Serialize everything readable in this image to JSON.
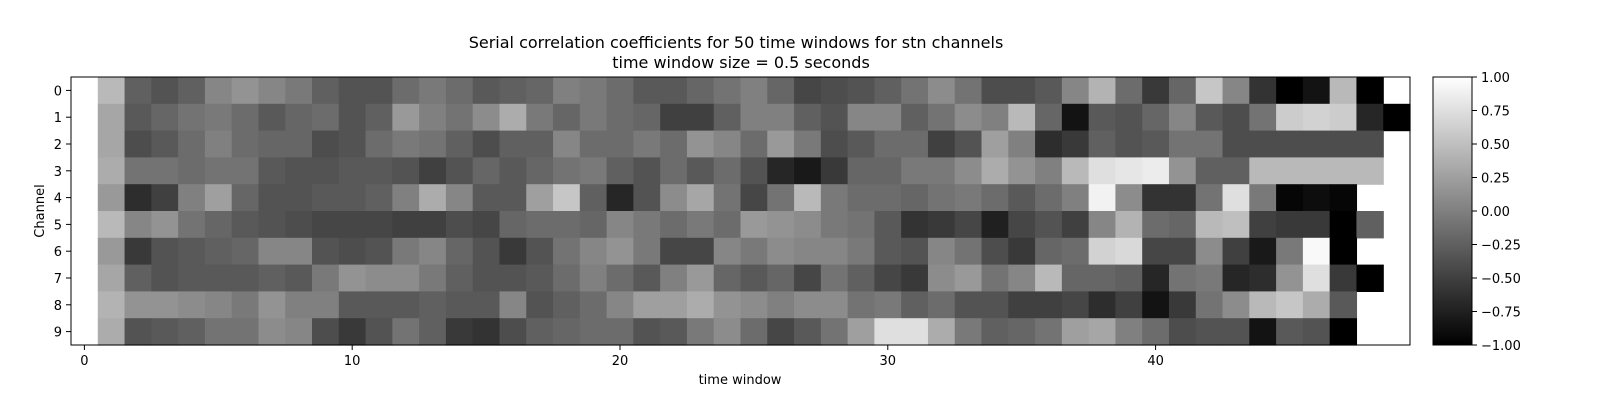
{
  "chart_data": {
    "type": "heatmap",
    "title": "Serial correlation coefficients for 50 time windows for stn channels",
    "subtitle": "time window size = 0.5 seconds",
    "xlabel": "time window",
    "ylabel": "Channel",
    "x_ticks": [
      0,
      10,
      20,
      30,
      40
    ],
    "y_ticks": [
      0,
      1,
      2,
      3,
      4,
      5,
      6,
      7,
      8,
      9
    ],
    "xlim": [
      -0.5,
      49.5
    ],
    "colormap": "gray",
    "colorbar": {
      "range": [
        -1,
        1
      ],
      "ticks": [
        1.0,
        0.75,
        0.5,
        0.25,
        0.0,
        -0.25,
        -0.5,
        -0.75,
        -1.0
      ],
      "tick_labels": [
        "1.00",
        "0.75",
        "0.50",
        "0.25",
        "0.00",
        "−0.25",
        "−0.50",
        "−0.75",
        "−1.00"
      ]
    },
    "rows": [
      [
        null,
        0.45,
        -0.25,
        -0.35,
        -0.25,
        0.05,
        0.15,
        0.05,
        -0.05,
        -0.25,
        -0.35,
        -0.35,
        -0.15,
        -0.05,
        -0.15,
        -0.3,
        -0.25,
        -0.2,
        0.0,
        -0.05,
        -0.15,
        -0.3,
        -0.3,
        -0.2,
        -0.1,
        0.0,
        -0.2,
        -0.45,
        -0.4,
        -0.35,
        -0.25,
        -0.1,
        0.1,
        -0.1,
        -0.4,
        -0.4,
        -0.3,
        0.05,
        0.4,
        -0.15,
        -0.55,
        -0.2,
        0.55,
        0.05,
        -0.6,
        -1.0,
        -0.85,
        0.45,
        -1.0,
        null
      ],
      [
        null,
        0.3,
        -0.3,
        -0.2,
        -0.1,
        -0.05,
        -0.15,
        -0.3,
        -0.2,
        -0.15,
        -0.35,
        -0.25,
        0.2,
        0.0,
        -0.1,
        0.1,
        0.35,
        -0.05,
        -0.2,
        -0.05,
        -0.15,
        -0.2,
        -0.5,
        -0.5,
        -0.25,
        0.0,
        0.0,
        -0.25,
        -0.35,
        0.05,
        0.05,
        -0.25,
        -0.1,
        0.1,
        0.0,
        0.45,
        -0.2,
        -0.85,
        -0.3,
        -0.35,
        -0.2,
        0.05,
        -0.3,
        -0.4,
        -0.1,
        0.6,
        0.65,
        0.6,
        -0.7,
        -1.0
      ],
      [
        null,
        0.3,
        -0.4,
        -0.3,
        -0.15,
        0.0,
        -0.15,
        -0.2,
        -0.2,
        -0.4,
        -0.35,
        -0.15,
        -0.05,
        -0.1,
        -0.25,
        -0.4,
        -0.25,
        -0.25,
        0.05,
        -0.15,
        -0.15,
        -0.05,
        -0.15,
        0.15,
        0.05,
        -0.15,
        0.2,
        -0.05,
        -0.4,
        -0.3,
        -0.15,
        -0.15,
        -0.5,
        -0.35,
        0.25,
        0.0,
        -0.65,
        -0.55,
        -0.25,
        -0.35,
        -0.3,
        -0.1,
        -0.1,
        -0.4,
        -0.4,
        -0.4,
        -0.4,
        -0.4,
        -0.4,
        null
      ],
      [
        null,
        0.35,
        -0.1,
        -0.1,
        -0.15,
        -0.1,
        -0.1,
        -0.3,
        -0.35,
        -0.35,
        -0.3,
        -0.3,
        -0.35,
        -0.5,
        -0.35,
        -0.2,
        -0.3,
        -0.2,
        -0.1,
        -0.05,
        -0.25,
        -0.35,
        -0.15,
        -0.3,
        -0.15,
        -0.35,
        -0.7,
        -0.8,
        -0.55,
        -0.2,
        -0.2,
        -0.05,
        -0.05,
        0.1,
        0.35,
        0.15,
        0.0,
        0.45,
        0.75,
        0.8,
        0.85,
        0.15,
        -0.25,
        -0.25,
        0.45,
        0.45,
        0.45,
        0.45,
        0.45,
        null
      ],
      [
        null,
        0.2,
        -0.65,
        -0.5,
        0.0,
        0.25,
        -0.2,
        -0.35,
        -0.35,
        -0.3,
        -0.3,
        -0.25,
        0.0,
        0.35,
        0.05,
        -0.3,
        -0.3,
        0.25,
        0.55,
        -0.25,
        -0.7,
        -0.35,
        0.1,
        0.3,
        -0.1,
        -0.45,
        -0.1,
        0.45,
        -0.05,
        -0.15,
        -0.15,
        -0.2,
        -0.1,
        -0.05,
        -0.15,
        -0.3,
        -0.15,
        0.0,
        0.9,
        0.1,
        -0.6,
        -0.6,
        -0.1,
        0.75,
        -0.05,
        -0.95,
        -0.9,
        -0.95,
        null,
        null
      ],
      [
        null,
        0.45,
        0.05,
        0.15,
        -0.1,
        -0.2,
        -0.3,
        -0.35,
        -0.4,
        -0.45,
        -0.45,
        -0.45,
        -0.5,
        -0.5,
        -0.4,
        -0.45,
        -0.2,
        -0.15,
        -0.15,
        -0.2,
        0.05,
        -0.05,
        -0.15,
        -0.05,
        -0.15,
        0.2,
        0.15,
        0.1,
        -0.05,
        -0.1,
        -0.3,
        -0.6,
        -0.55,
        -0.45,
        -0.75,
        -0.45,
        -0.35,
        -0.5,
        0.05,
        0.4,
        -0.15,
        -0.2,
        0.45,
        0.5,
        -0.5,
        -0.55,
        -0.55,
        -1.0,
        -0.25,
        null
      ],
      [
        null,
        0.2,
        -0.55,
        -0.35,
        -0.3,
        -0.25,
        -0.2,
        0.05,
        0.05,
        -0.35,
        -0.4,
        -0.35,
        -0.05,
        0.05,
        -0.2,
        -0.35,
        -0.55,
        -0.35,
        -0.1,
        0.05,
        0.15,
        -0.05,
        -0.45,
        -0.45,
        0.05,
        -0.05,
        0.1,
        0.05,
        0.05,
        -0.05,
        -0.3,
        -0.35,
        0.05,
        -0.1,
        -0.4,
        -0.55,
        -0.2,
        -0.15,
        0.65,
        0.7,
        -0.45,
        -0.45,
        0.1,
        -0.5,
        -0.8,
        -0.05,
        0.95,
        -1.0,
        null,
        null
      ],
      [
        null,
        0.3,
        -0.25,
        -0.35,
        -0.3,
        -0.3,
        -0.3,
        -0.25,
        -0.3,
        -0.05,
        0.15,
        0.1,
        0.1,
        -0.05,
        -0.25,
        -0.35,
        -0.35,
        -0.3,
        -0.15,
        0.0,
        -0.15,
        -0.3,
        0.0,
        0.2,
        -0.2,
        -0.3,
        -0.2,
        -0.45,
        -0.1,
        -0.25,
        -0.45,
        -0.55,
        0.1,
        0.2,
        -0.1,
        0.05,
        0.45,
        -0.2,
        -0.2,
        -0.25,
        -0.7,
        -0.1,
        -0.05,
        -0.7,
        -0.65,
        0.15,
        0.75,
        -0.55,
        -1.0,
        null
      ],
      [
        null,
        0.4,
        0.15,
        0.15,
        0.1,
        0.05,
        -0.05,
        0.15,
        0.0,
        0.0,
        -0.3,
        -0.3,
        -0.3,
        -0.25,
        -0.3,
        -0.3,
        0.05,
        -0.35,
        -0.25,
        -0.15,
        0.05,
        0.25,
        0.25,
        0.35,
        0.15,
        0.1,
        0.0,
        0.1,
        0.1,
        -0.1,
        -0.05,
        -0.25,
        -0.15,
        -0.35,
        -0.35,
        -0.5,
        -0.5,
        -0.45,
        -0.65,
        -0.5,
        -0.85,
        -0.55,
        -0.1,
        0.1,
        0.45,
        0.55,
        0.35,
        -0.3,
        null,
        null
      ],
      [
        null,
        0.35,
        -0.35,
        -0.3,
        -0.25,
        -0.1,
        -0.1,
        0.1,
        0.05,
        -0.4,
        -0.55,
        -0.35,
        -0.1,
        -0.25,
        -0.55,
        -0.6,
        -0.4,
        -0.25,
        -0.2,
        -0.15,
        -0.15,
        -0.35,
        -0.3,
        -0.05,
        0.1,
        -0.15,
        -0.45,
        -0.3,
        -0.1,
        0.25,
        0.75,
        0.75,
        0.35,
        -0.05,
        -0.25,
        -0.2,
        -0.1,
        0.25,
        0.3,
        0.0,
        -0.15,
        -0.4,
        -0.35,
        -0.35,
        -0.85,
        -0.3,
        -0.35,
        -1.0,
        null,
        null
      ]
    ]
  }
}
